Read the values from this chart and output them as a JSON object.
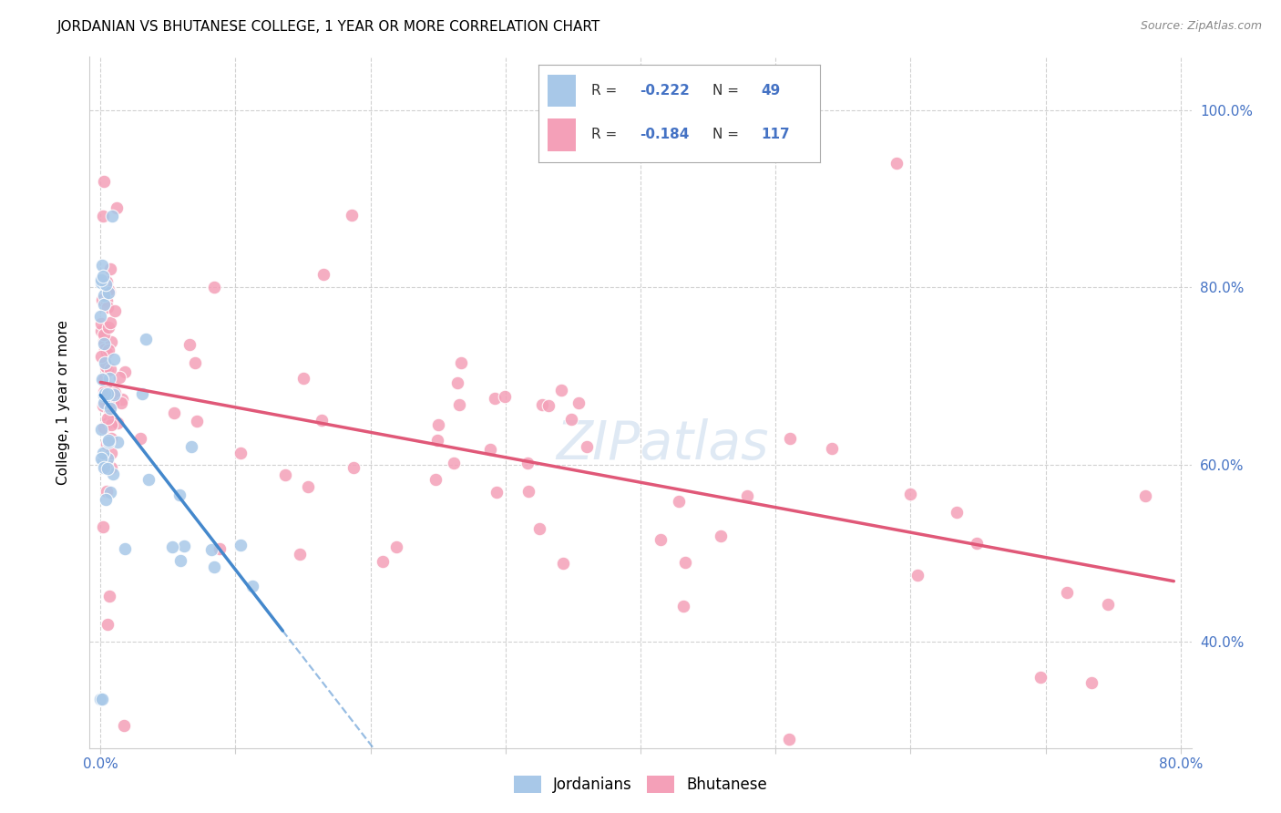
{
  "title": "JORDANIAN VS BHUTANESE COLLEGE, 1 YEAR OR MORE CORRELATION CHART",
  "source": "Source: ZipAtlas.com",
  "ylabel": "College, 1 year or more",
  "legend_jordanian": {
    "R": -0.222,
    "N": 49,
    "color": "#a8c8e8",
    "line_color": "#4488cc"
  },
  "legend_bhutanese": {
    "R": -0.184,
    "N": 117,
    "color": "#f4a0b8",
    "line_color": "#e05878"
  },
  "xlim": [
    0.0,
    0.8
  ],
  "ylim": [
    0.28,
    1.06
  ],
  "xticks": [
    0.0,
    0.1,
    0.2,
    0.3,
    0.4,
    0.5,
    0.6,
    0.7,
    0.8
  ],
  "xtick_labels_show": {
    "0.0": "0.0%",
    "0.8": "80.0%"
  },
  "yticks": [
    0.4,
    0.6,
    0.8,
    1.0
  ],
  "ytick_labels": [
    "40.0%",
    "60.0%",
    "80.0%",
    "100.0%"
  ],
  "watermark": "ZIPatlas",
  "background_color": "#ffffff",
  "grid_color": "#cccccc",
  "axis_label_color": "#4472c4",
  "title_fontsize": 11,
  "source_fontsize": 9,
  "tick_fontsize": 11,
  "jord_line_end_x": 0.135,
  "bhut_line_start_x": 0.0,
  "bhut_line_end_x": 0.795
}
